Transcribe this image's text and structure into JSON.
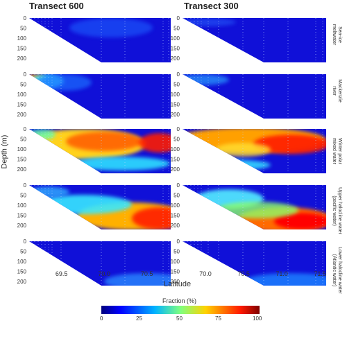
{
  "columns": [
    "Transect 600",
    "Transect 300"
  ],
  "rows": [
    {
      "label_lines": [
        "Sea-ice",
        "meltwater"
      ]
    },
    {
      "label_lines": [
        "Mackenzie",
        "river"
      ]
    },
    {
      "label_lines": [
        "Winter polar",
        "mixed water"
      ]
    },
    {
      "label_lines": [
        "Upper halocline water",
        "(pacific water)"
      ]
    },
    {
      "label_lines": [
        "Lower halocline water",
        "(Atlantic water)"
      ]
    }
  ],
  "y_axis_label": "Depth (m)",
  "x_axis_label": "Latitude",
  "colorbar": {
    "title": "Fraction (%)",
    "ticks": [
      "0",
      "25",
      "50",
      "75",
      "100"
    ],
    "range": [
      0,
      100
    ],
    "colormap": "jet"
  },
  "chart_data": [
    {
      "type": "heatmap",
      "panel": "Transect 600",
      "xlabel": "Latitude",
      "ylabel": "Depth (m)",
      "x_ticks": [
        "69.5",
        "70.0",
        "70.5"
      ],
      "y_ticks": [
        "0",
        "50",
        "100",
        "150",
        "200"
      ],
      "xlim": [
        69.12,
        70.78
      ],
      "ylim": [
        240,
        0
      ],
      "rows": [
        "Sea-ice meltwater",
        "Mackenzie river",
        "Winter polar mixed water",
        "Upper halocline water (pacific water)",
        "Lower halocline water (Atlantic water)"
      ],
      "typical_fraction": [
        5,
        8,
        70,
        55,
        6
      ]
    },
    {
      "type": "heatmap",
      "panel": "Transect 300",
      "xlabel": "Latitude",
      "ylabel": "Depth (m)",
      "x_ticks": [
        "70.0",
        "70.5",
        "71.0",
        "71.5"
      ],
      "y_ticks": [
        "0",
        "50",
        "100",
        "150",
        "200"
      ],
      "xlim": [
        69.7,
        71.58
      ],
      "ylim": [
        240,
        0
      ],
      "rows": [
        "Sea-ice meltwater",
        "Mackenzie river",
        "Winter polar mixed water",
        "Upper halocline water (pacific water)",
        "Lower halocline water (Atlantic water)"
      ],
      "typical_fraction": [
        3,
        6,
        72,
        60,
        10
      ]
    }
  ]
}
